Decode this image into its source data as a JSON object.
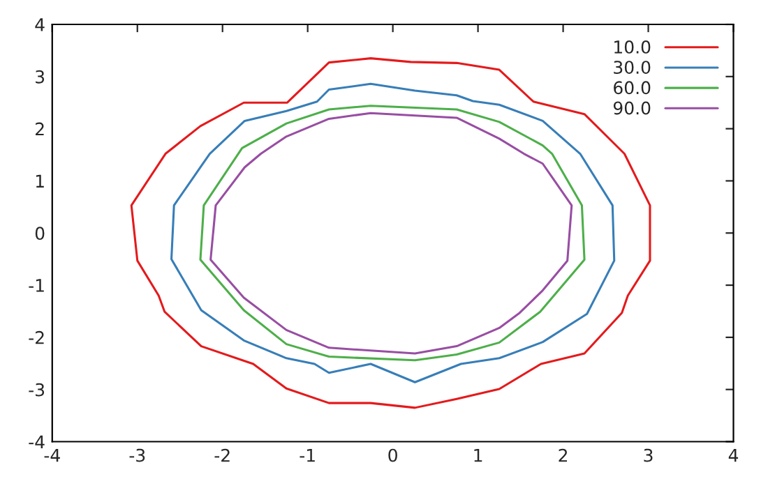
{
  "chart_data": {
    "type": "line",
    "xlim": [
      -4,
      4
    ],
    "ylim": [
      -4,
      4
    ],
    "xticks": [
      -4,
      -3,
      -2,
      -1,
      0,
      1,
      2,
      3,
      4
    ],
    "yticks": [
      -4,
      -3,
      -2,
      -1,
      0,
      1,
      2,
      3,
      4
    ],
    "grid": false,
    "legend": "top right",
    "marker": "none",
    "line_style": "solid",
    "series": [
      {
        "name": "10.0",
        "color": "#e41a1c",
        "x": [
          -3.035,
          -3.07,
          -2.67,
          -2.26,
          -1.75,
          -1.24,
          -0.75,
          -0.26,
          0.21,
          0.75,
          1.25,
          1.65,
          2.25,
          2.72,
          3.02,
          3.02,
          2.76,
          2.69,
          2.25,
          1.74,
          1.25,
          0.75,
          0.26,
          -0.26,
          -0.75,
          -1.25,
          -1.64,
          -2.25,
          -2.68,
          -2.75,
          -3.0,
          -3.07
        ],
        "values": [
          0.0,
          0.53,
          1.52,
          2.05,
          2.5,
          2.5,
          3.27,
          3.35,
          3.28,
          3.26,
          3.13,
          2.52,
          2.28,
          1.52,
          0.53,
          -0.53,
          -1.2,
          -1.53,
          -2.31,
          -2.51,
          -2.99,
          -3.18,
          -3.35,
          -3.26,
          -3.26,
          -2.98,
          -2.51,
          -2.17,
          -1.51,
          -1.2,
          -0.53,
          0.53
        ]
      },
      {
        "name": "30.0",
        "color": "#377eb8",
        "x": [
          -2.585,
          -2.57,
          -2.26,
          -2.15,
          -1.74,
          -1.25,
          -0.89,
          -0.75,
          -0.26,
          0.26,
          0.75,
          0.94,
          1.25,
          1.76,
          2.2,
          2.58,
          2.6,
          2.28,
          1.76,
          1.25,
          0.8,
          0.26,
          -0.26,
          -0.75,
          -0.92,
          -1.25,
          -1.75,
          -2.25,
          -2.6,
          -2.57
        ],
        "values": [
          0.0,
          0.53,
          1.26,
          1.52,
          2.15,
          2.34,
          2.52,
          2.75,
          2.86,
          2.73,
          2.64,
          2.53,
          2.46,
          2.15,
          1.52,
          0.53,
          -0.53,
          -1.55,
          -2.09,
          -2.4,
          -2.51,
          -2.86,
          -2.51,
          -2.68,
          -2.51,
          -2.4,
          -2.06,
          -1.48,
          -0.5,
          0.53
        ]
      },
      {
        "name": "60.0",
        "color": "#4daf4a",
        "x": [
          -2.24,
          -2.22,
          -1.77,
          -1.25,
          -0.75,
          -0.26,
          0.75,
          1.25,
          1.76,
          1.87,
          2.22,
          2.25,
          1.73,
          1.25,
          0.75,
          0.26,
          -0.75,
          -1.25,
          -1.75,
          -2.26,
          -2.22
        ],
        "values": [
          0.0,
          0.53,
          1.63,
          2.1,
          2.37,
          2.44,
          2.37,
          2.13,
          1.68,
          1.52,
          0.53,
          -0.51,
          -1.51,
          -2.1,
          -2.33,
          -2.44,
          -2.37,
          -2.13,
          -1.48,
          -0.51,
          0.53
        ]
      },
      {
        "name": "90.0",
        "color": "#984ea3",
        "x": [
          -2.11,
          -2.08,
          -1.74,
          -1.55,
          -1.25,
          -0.75,
          -0.26,
          0.75,
          1.25,
          1.54,
          1.76,
          2.1,
          2.05,
          1.76,
          1.49,
          1.25,
          0.75,
          0.26,
          -0.75,
          -1.25,
          -1.75,
          -2.14,
          -2.08
        ],
        "values": [
          0.0,
          0.53,
          1.26,
          1.52,
          1.85,
          2.19,
          2.3,
          2.21,
          1.81,
          1.52,
          1.33,
          0.53,
          -0.53,
          -1.1,
          -1.53,
          -1.82,
          -2.17,
          -2.31,
          -2.2,
          -1.86,
          -1.24,
          -0.51,
          0.53
        ]
      }
    ]
  }
}
